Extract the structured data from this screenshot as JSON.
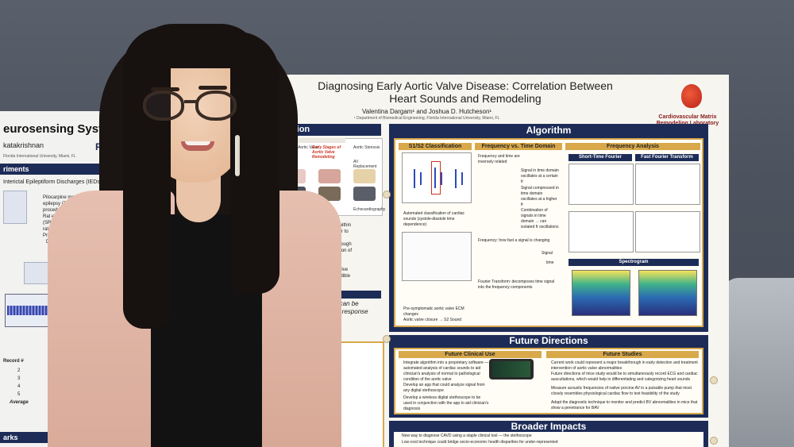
{
  "left_poster": {
    "title": "eurosensing System",
    "author": "katakrishnan",
    "affiliation": "Florida International University, Miami, FL",
    "logo": "RFCO",
    "section_1": "riments",
    "subtitle": "Interictal Epileptiform Discharges (IEDs)",
    "text_1": "Pilocarpine model used to induce",
    "text_2": "epilepsy (TLE) and",
    "text_3": "procedure described",
    "text_4": "Rat exhibiting",
    "text_5": "(SRSs) was recorded",
    "text_6": "rate) for IED a",
    "text_7": "Processing",
    "text_8": "Data were",
    "table_header": "Record #",
    "rows": [
      "2",
      "3",
      "4",
      "5"
    ],
    "average": "Average",
    "footer": "arks"
  },
  "main_poster": {
    "title_line1": "Diagnosing Early Aortic Valve Disease: Correlation Between",
    "title_line2": "Heart Sounds and Remodeling",
    "authors": "Valentina Dargam¹ and Joshua D. Hutcheson¹",
    "affiliation": "¹ Department of Biomedical Engineering, Florida International University, Miami, FL",
    "lab_name": "Cardiovascular Matrix Remodeling Laboratory",
    "left_fragment_1": "ering",
    "left_fragment_2": "puting",
    "intro": {
      "heading": "Introduction",
      "progression": "CAVD Progression",
      "col_healthy": "Healthy Aortic Valve",
      "col_early": "Early Stages of Aortic Valve Remodeling",
      "col_stenosis": "Aortic Stenosis",
      "col_replacement": "AV Replacement",
      "row_sounds": "Sounds",
      "row_association": "Association",
      "row_echo": "Echocardiography",
      "text_lines": [
        "elastin and GAGs within",
        "e vocal folds, similar to",
        "o AV, control voice",
        "equency ranges through",
        "mechanical regulation of",
        "tissue vibration",
        "ations of AV leaflets",
        "g atrioventricular valve",
        "ure produce the audible",
        "es (S2 sound)",
        "through a doctor's",
        "scope"
      ],
      "note_line1": "deling can be",
      "note_line2": "sound) response"
    },
    "algorithm": {
      "heading": "Algorithm",
      "s1s2": "S1/S2 Classification",
      "freq_time": "Frequency vs. Time Domain",
      "freq_analysis": "Frequency Analysis",
      "stft": "Short-Time Fourier Transform",
      "fft": "Fast Fourier Transform",
      "spectrogram": "Spectrogram",
      "bullet_1": "Frequency and time are inversely related",
      "bullet_2": "Automated classification of cardiac sounds (systole-diastole time dependence)",
      "bullet_3": "Pre-symptomatic aortic valve ECM changes",
      "bullet_4": "Aortic valve closure → S2 Sound",
      "freq_def": "Frequency: how fast a signal is changing",
      "fourier_def": "Fourier Transform: decomposes time signal into the frequency components",
      "signal_time": "Signal in time domain oscillates at a certain fr",
      "signal_compressed": "Signal compressed in time domain oscillates at a higher fr",
      "combination": "Combination of signals in time domain → can isolated fr oscillations",
      "label_signal": "Signal",
      "label_time": "time"
    },
    "future": {
      "heading": "Future Directions",
      "clinical": "Future Clinical Use",
      "studies": "Future Studies",
      "clinical_items": [
        "Integrate algorithm into a proprietary software — automated analysis of cardiac sounds to aid clinician's analysis of normal to pathological condition of the aortic valve",
        "Develop an app that could analyze signal from any digital stethoscope",
        "Develop a wireless digital stethoscope to be used in conjunction with the app to aid clinician's diagnosis"
      ],
      "study_items": [
        "Current work could represent a major breakthrough in early detection and treatment intervention of aortic valve abnormalities",
        "Future directions of mice study would be to simultaneously record ECG and cardiac auscultations, which would help in differentiating and categorizing heart sounds",
        "Measure acoustic frequencies of native porcine AV in a pulsatile pump that most closely resembles physiological cardiac flow to test feasibility of the study",
        "Adapt the diagnostic technique to monitor and predict BV abnormalities in mice that show a penetrance for BAV"
      ]
    },
    "impacts": {
      "heading": "Broader Impacts",
      "item_1": "New way to diagnose CAVD using a staple clinical tool — the stethoscope",
      "item_2": "Low-cost technique could bridge socio-economic health disparities for under-represented"
    }
  },
  "colors": {
    "navy": "#1d2c57",
    "gold": "#d8a84a",
    "blazer": "#e6bfb0"
  }
}
